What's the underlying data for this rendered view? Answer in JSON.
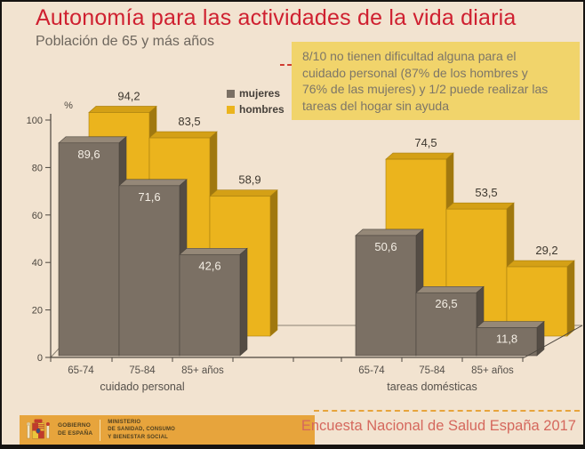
{
  "slide": {
    "title": "Autonomía para las actividades de la vida diaria",
    "subtitle": "Población de 65 y más años",
    "infobox_text": "8/10 no tienen dificultad alguna para el\ncuidado personal (87% de los hombres y\n76% de las mujeres) y 1/2 puede realizar las\ntareas del hogar sin ayuda",
    "source": "Encuesta Nacional de Salud España 2017",
    "logo": {
      "government": "GOBIERNO\nDE ESPAÑA",
      "ministry": "MINISTERIO\nDE SANIDAD, CONSUMO\nY BIENESTAR SOCIAL"
    },
    "accent_colors": {
      "title_red": "#cf2030",
      "infobox_yellow": "#f1d46b",
      "footer_orange": "#e7a43c",
      "source_red": "#d5685d"
    }
  },
  "legend": {
    "items": [
      {
        "label": "mujeres",
        "color": "#7b7064"
      },
      {
        "label": "hombres",
        "color": "#ebb41d"
      }
    ]
  },
  "chart_data": {
    "type": "bar",
    "style": "3d-overlap",
    "ylabel": "%",
    "ylim": [
      0,
      100
    ],
    "yticks": [
      0,
      20,
      40,
      60,
      80,
      100
    ],
    "legend_position": "top",
    "grid": false,
    "value_labels": "comma-decimal",
    "series_colors": {
      "mujeres": "#7b7064",
      "hombres": "#ebb41d"
    },
    "groups": [
      {
        "label": "cuidado personal",
        "categories": [
          "65-74",
          "75-84",
          "85+ años"
        ],
        "series": [
          {
            "name": "mujeres",
            "values": [
              89.6,
              71.6,
              42.6
            ]
          },
          {
            "name": "hombres",
            "values": [
              94.2,
              83.5,
              58.9
            ]
          }
        ]
      },
      {
        "label": "tareas domésticas",
        "categories": [
          "65-74",
          "75-84",
          "85+ años"
        ],
        "series": [
          {
            "name": "mujeres",
            "values": [
              50.6,
              26.5,
              11.8
            ]
          },
          {
            "name": "hombres",
            "values": [
              74.5,
              53.5,
              29.2
            ]
          }
        ]
      }
    ]
  }
}
